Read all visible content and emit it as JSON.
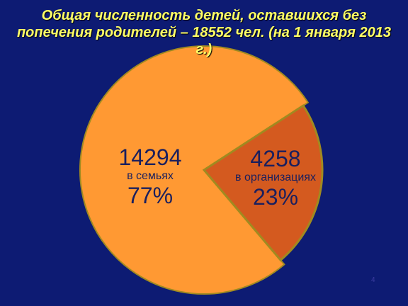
{
  "chart_data": {
    "type": "pie",
    "title": "Общая численность детей, оставшихся без попечения родителей – 18552 чел. (на 1 января 2013 г.)",
    "slices": [
      {
        "value": 14294,
        "label": "в семьях",
        "percent": "77%",
        "color": "#ff9933"
      },
      {
        "value": 4258,
        "label": "в организациях",
        "percent": "23%",
        "color": "#d45a1f"
      }
    ],
    "total": 18552,
    "legend": "none"
  },
  "colors": {
    "background": "#0d1b73",
    "title": "#ffff66",
    "slice_outline": "#a08a20",
    "label_text": "#1a1f5e"
  },
  "footer": {
    "page_number": "4"
  }
}
